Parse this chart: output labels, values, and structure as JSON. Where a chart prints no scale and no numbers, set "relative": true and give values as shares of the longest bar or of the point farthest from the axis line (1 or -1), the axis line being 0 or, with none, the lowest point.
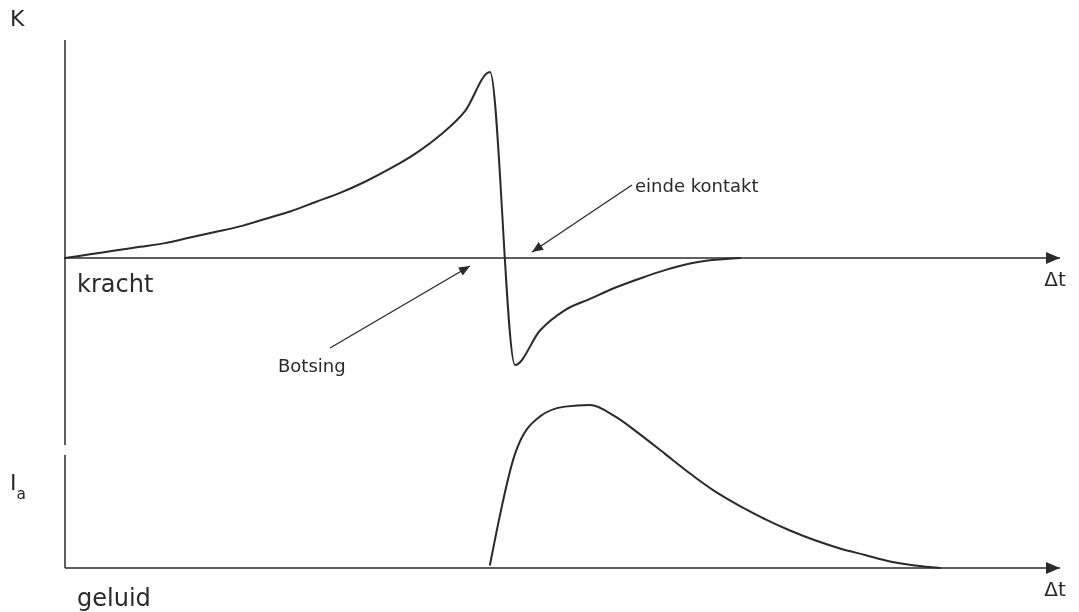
{
  "chart_data": [
    {
      "type": "line",
      "relative": true,
      "ylabel": "K",
      "xlabel": "Δt",
      "title": "kracht",
      "color": "#2a2a2a",
      "categories": [
        null,
        null,
        null,
        null,
        null,
        null,
        null,
        null,
        null,
        null,
        null,
        null,
        null,
        null,
        null,
        null,
        null,
        null,
        null,
        null,
        null,
        null,
        null,
        null,
        null,
        null,
        null,
        null,
        null,
        null,
        null,
        null,
        null,
        null,
        null,
        null,
        null,
        null,
        null,
        null
      ],
      "values": [
        0,
        0.02,
        0.04,
        0.06,
        0.08,
        0.11,
        0.14,
        0.17,
        0.21,
        0.25,
        0.3,
        0.35,
        0.41,
        0.48,
        0.56,
        0.66,
        0.79,
        1,
        -0.575,
        -0.39,
        -0.28,
        -0.22,
        -0.16,
        -0.11,
        -0.065,
        -0.03,
        -0.01,
        0,
        null,
        null,
        null,
        null,
        null,
        null,
        null,
        null,
        null,
        null,
        null,
        null
      ],
      "annotations": [
        "Botsing",
        "einde kontakt"
      ]
    },
    {
      "type": "line",
      "relative": true,
      "ylabel": "I$_{a}$",
      "xlabel": "Δt",
      "title": "geluid",
      "color": "#2a2a2a",
      "categories": [
        null,
        null,
        null,
        null,
        null,
        null,
        null,
        null,
        null,
        null,
        null,
        null,
        null,
        null,
        null,
        null,
        null,
        null,
        null,
        null,
        null,
        null,
        null,
        null,
        null,
        null,
        null,
        null,
        null,
        null,
        null,
        null,
        null,
        null,
        null,
        null,
        null,
        null,
        null,
        null
      ],
      "values": [
        null,
        null,
        null,
        null,
        null,
        null,
        null,
        null,
        null,
        null,
        null,
        null,
        null,
        null,
        null,
        null,
        null,
        0.02,
        0.7,
        0.93,
        0.99,
        1,
        0.93,
        0.82,
        0.7,
        0.58,
        0.47,
        0.38,
        0.3,
        0.23,
        0.17,
        0.12,
        0.08,
        0.04,
        0.015,
        0,
        null,
        null,
        null,
        null
      ]
    }
  ]
}
